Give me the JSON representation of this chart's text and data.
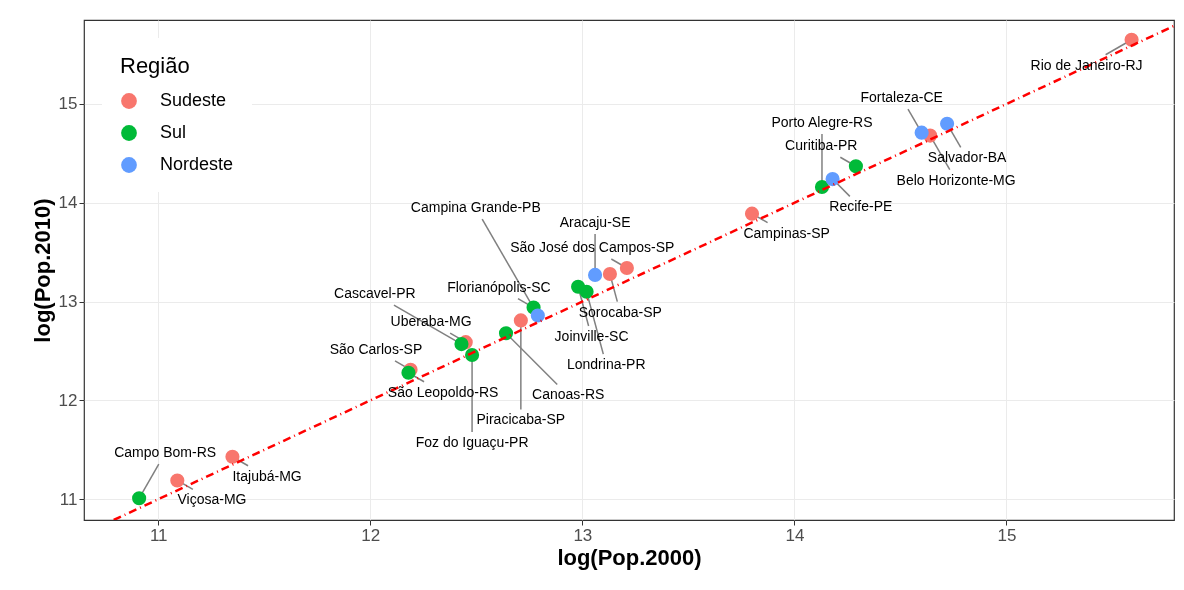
{
  "chart_data": {
    "type": "scatter",
    "xlabel": "log(Pop.2000)",
    "ylabel": "log(Pop.2010)",
    "legend_title": "Região",
    "legend": "top left",
    "grid": true,
    "marker": "circle",
    "xlim": [
      10.65,
      15.79
    ],
    "ylim": [
      10.79,
      15.85
    ],
    "xticks": [
      11,
      12,
      13,
      14,
      15
    ],
    "yticks": [
      11,
      12,
      13,
      14,
      15
    ],
    "series": [
      {
        "name": "Sudeste",
        "color": "#f8766d",
        "x": [
          15.59,
          14.64,
          13.8,
          13.21,
          13.13,
          12.71,
          11.35,
          11.09,
          12.19,
          12.45
        ],
        "values": [
          15.65,
          14.68,
          13.89,
          13.34,
          13.28,
          12.81,
          11.43,
          11.19,
          12.31,
          12.59
        ]
      },
      {
        "name": "Sul",
        "color": "#00ba38",
        "x": [
          14.29,
          14.13,
          12.98,
          13.02,
          12.77,
          12.64,
          12.43,
          12.48,
          12.18,
          10.91
        ],
        "values": [
          14.37,
          14.16,
          13.15,
          13.1,
          12.94,
          12.68,
          12.57,
          12.46,
          12.28,
          11.01
        ]
      },
      {
        "name": "Nordeste",
        "color": "#619cff",
        "x": [
          14.72,
          14.6,
          14.18,
          13.06,
          12.79
        ],
        "values": [
          14.8,
          14.71,
          14.24,
          13.27,
          12.86
        ]
      },
      {
        "type": "line",
        "color": "#ff0000",
        "line_style": "dashed",
        "marker": "none",
        "x": [
          10.79,
          15.79
        ],
        "values": [
          10.79,
          15.79
        ]
      }
    ],
    "annotations": [
      {
        "text": "Rio de Janeiro-RJ",
        "x": 15.59,
        "y": 15.65
      },
      {
        "text": "Salvador-BA",
        "x": 14.72,
        "y": 14.8
      },
      {
        "text": "Fortaleza-CE",
        "x": 14.6,
        "y": 14.71
      },
      {
        "text": "Belo Horizonte-MG",
        "x": 14.64,
        "y": 14.68
      },
      {
        "text": "Recife-PE",
        "x": 14.18,
        "y": 14.24
      },
      {
        "text": "Curitiba-PR",
        "x": 14.29,
        "y": 14.37
      },
      {
        "text": "São José dos Campos-SP",
        "x": 13.21,
        "y": 13.34
      },
      {
        "text": "Sorocaba-SP",
        "x": 13.13,
        "y": 13.28
      },
      {
        "text": "Campinas-SP",
        "x": 13.8,
        "y": 13.89
      },
      {
        "text": "Porto Alegre-RS",
        "x": 14.13,
        "y": 14.16
      },
      {
        "text": "Aracaju-SE",
        "x": 13.06,
        "y": 13.27
      },
      {
        "text": "Joinville-SC",
        "x": 12.98,
        "y": 13.15
      },
      {
        "text": "Florianópolis-SC",
        "x": 12.77,
        "y": 12.94
      },
      {
        "text": "Londrina-PR",
        "x": 13.02,
        "y": 13.1
      },
      {
        "text": "São Leopoldo-RS",
        "x": 12.18,
        "y": 12.28
      },
      {
        "text": "Uberaba-MG",
        "x": 12.45,
        "y": 12.59
      },
      {
        "text": "São Carlos-SP",
        "x": 12.19,
        "y": 12.31
      },
      {
        "text": "Canoas-RS",
        "x": 12.64,
        "y": 12.68
      },
      {
        "text": "Piracicaba-SP",
        "x": 12.71,
        "y": 12.81
      },
      {
        "text": "Campina Grande-PB",
        "x": 12.79,
        "y": 12.86
      },
      {
        "text": "Campo Bom-RS",
        "x": 10.91,
        "y": 11.01
      },
      {
        "text": "Viçosa-MG",
        "x": 11.09,
        "y": 11.19
      },
      {
        "text": "Itajubá-MG",
        "x": 11.35,
        "y": 11.43
      },
      {
        "text": "Cascavel-PR",
        "x": 12.43,
        "y": 12.57
      },
      {
        "text": "Foz do Iguaçu-PR",
        "x": 12.48,
        "y": 12.46
      }
    ]
  }
}
